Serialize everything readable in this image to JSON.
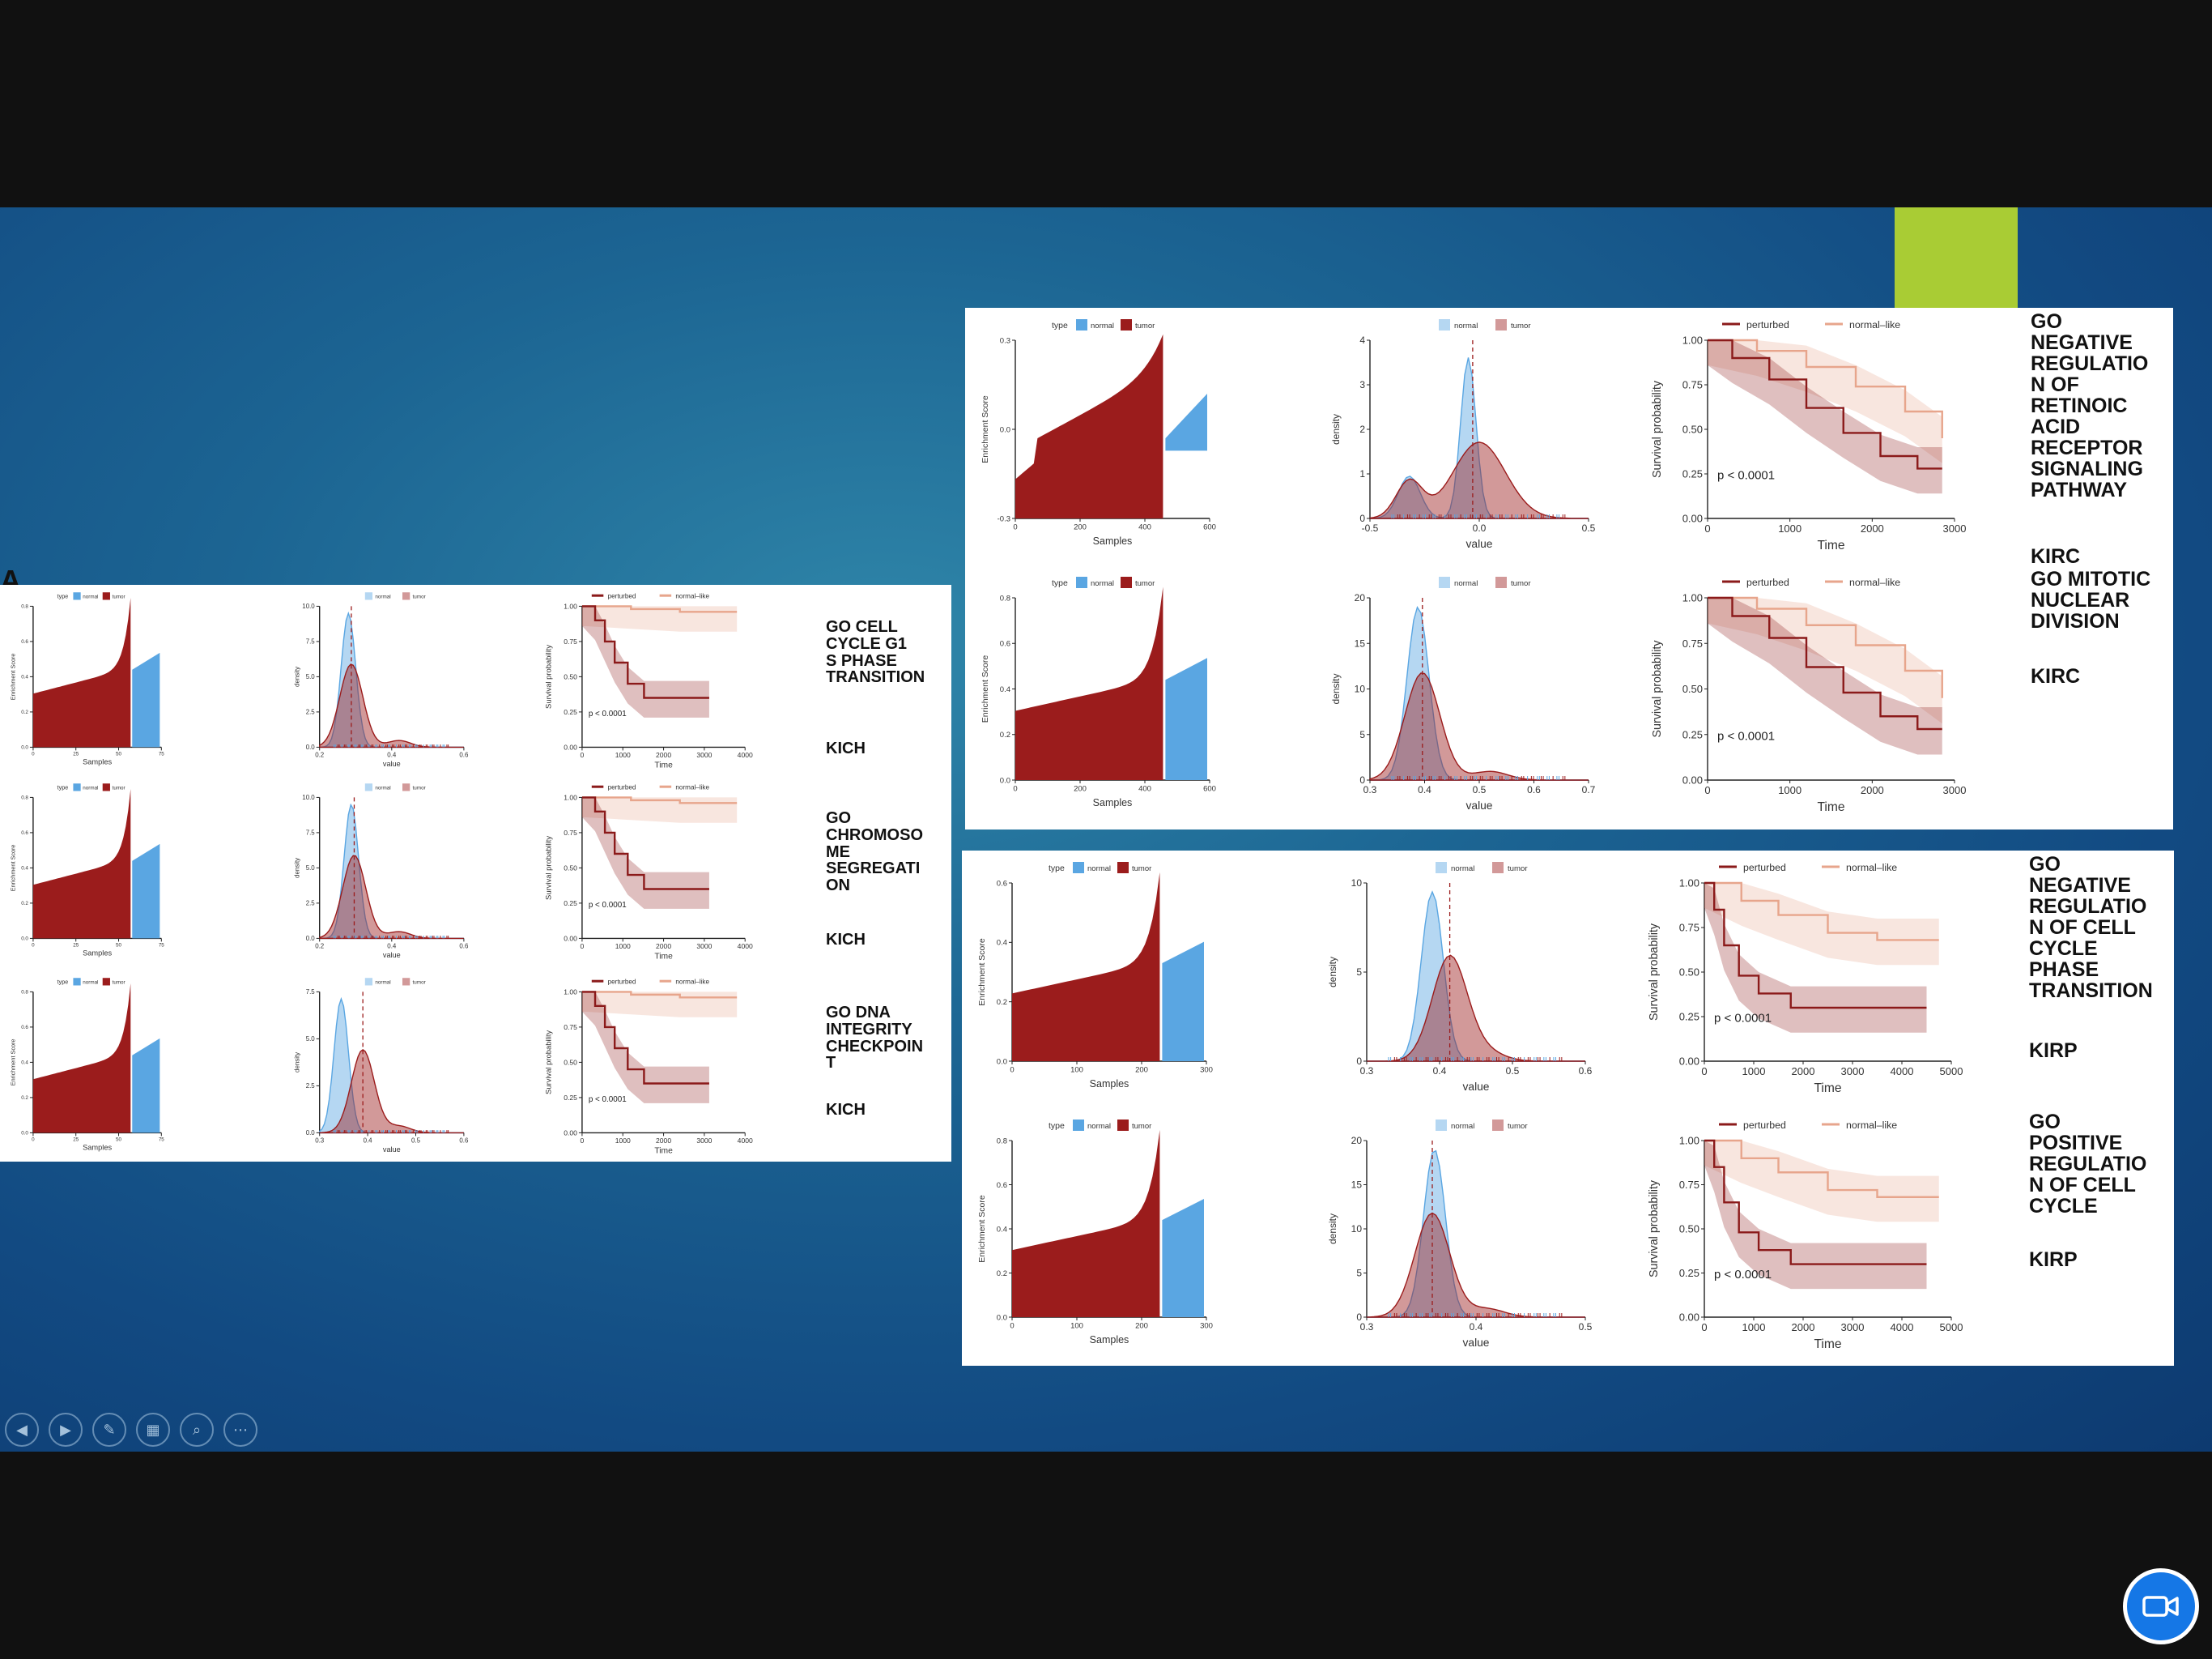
{
  "slide": {
    "title_fragment": "A"
  },
  "colors": {
    "tumor": "#9b1c1c",
    "normal": "#5aa6e2",
    "perturbed": "#8b1a1a",
    "normal_like": "#e7a58c",
    "accent": "#a9cc34",
    "camera": "#1577e6"
  },
  "legend_text": {
    "type": "type",
    "normal": "normal",
    "tumor": "tumor",
    "perturbed": "perturbed",
    "normal_like": "normal–like",
    "normal_like_alt": "normal–like"
  },
  "axis_text": {
    "enrichment": "Enrichment Score",
    "samples": "Samples",
    "density": "density",
    "value": "value",
    "survival": "Survival probability",
    "time": "Time"
  },
  "rows": [
    {
      "pathway": "GO CELL\nCYCLE G1\nS PHASE\nTRANSITION",
      "cohort": "KICH",
      "pvalue": "p < 0.0001",
      "e_xticks": [
        "0",
        "25",
        "50",
        "75"
      ],
      "e_yticks": [
        "0.0",
        "0.2",
        "0.4",
        "0.6",
        "0.8"
      ],
      "d_xticks": [
        "0.2",
        "0.4",
        "0.6"
      ],
      "d_yticks": [
        "0.0",
        "2.5",
        "5.0",
        "7.5",
        "10.0"
      ],
      "s_xticks": [
        "0",
        "1000",
        "2000",
        "3000",
        "4000"
      ],
      "s_yticks": [
        "0.00",
        "0.25",
        "0.50",
        "0.75",
        "1.00"
      ]
    },
    {
      "pathway": "GO\nCHROMOSO\nME\nSEGREGATI\nON",
      "cohort": "KICH",
      "pvalue": "p < 0.0001",
      "e_xticks": [
        "0",
        "25",
        "50",
        "75"
      ],
      "e_yticks": [
        "0.0",
        "0.2",
        "0.4",
        "0.6",
        "0.8"
      ],
      "d_xticks": [
        "0.2",
        "0.4",
        "0.6"
      ],
      "d_yticks": [
        "0.0",
        "2.5",
        "5.0",
        "7.5",
        "10.0"
      ],
      "s_xticks": [
        "0",
        "1000",
        "2000",
        "3000",
        "4000"
      ],
      "s_yticks": [
        "0.00",
        "0.25",
        "0.50",
        "0.75",
        "1.00"
      ]
    },
    {
      "pathway": "GO DNA\nINTEGRITY\nCHECKPOIN\nT",
      "cohort": "KICH",
      "pvalue": "p < 0.0001",
      "e_xticks": [
        "0",
        "25",
        "50",
        "75"
      ],
      "e_yticks": [
        "0.0",
        "0.2",
        "0.4",
        "0.6",
        "0.8"
      ],
      "d_xticks": [
        "0.3",
        "0.4",
        "0.5",
        "0.6"
      ],
      "d_yticks": [
        "0.0",
        "2.5",
        "5.0",
        "7.5"
      ],
      "s_xticks": [
        "0",
        "1000",
        "2000",
        "3000",
        "4000"
      ],
      "s_yticks": [
        "0.00",
        "0.25",
        "0.50",
        "0.75",
        "1.00"
      ]
    },
    {
      "pathway": "GO\nNEGATIVE\nREGULATIO\nN OF\nRETINOIC\nACID\nRECEPTOR\nSIGNALING\nPATHWAY",
      "cohort": "KIRC",
      "pvalue": "p < 0.0001",
      "e_xticks": [
        "0",
        "200",
        "400",
        "600"
      ],
      "e_yticks": [
        "-0.3",
        "0.0",
        "0.3"
      ],
      "d_xticks": [
        "-0.5",
        "0.0",
        "0.5"
      ],
      "d_yticks": [
        "0",
        "1",
        "2",
        "3",
        "4"
      ],
      "s_xticks": [
        "0",
        "1000",
        "2000",
        "3000"
      ],
      "s_yticks": [
        "0.00",
        "0.25",
        "0.50",
        "0.75",
        "1.00"
      ]
    },
    {
      "pathway": "GO MITOTIC\nNUCLEAR\nDIVISION",
      "cohort": "KIRC",
      "pvalue": "p < 0.0001",
      "e_xticks": [
        "0",
        "200",
        "400",
        "600"
      ],
      "e_yticks": [
        "0.0",
        "0.2",
        "0.4",
        "0.6",
        "0.8"
      ],
      "d_xticks": [
        "0.3",
        "0.4",
        "0.5",
        "0.6",
        "0.7"
      ],
      "d_yticks": [
        "0",
        "5",
        "10",
        "15",
        "20"
      ],
      "s_xticks": [
        "0",
        "1000",
        "2000",
        "3000"
      ],
      "s_yticks": [
        "0.00",
        "0.25",
        "0.50",
        "0.75",
        "1.00"
      ]
    },
    {
      "pathway": "GO\nNEGATIVE\nREGULATIO\nN OF CELL\nCYCLE\nPHASE\nTRANSITION",
      "cohort": "KIRP",
      "pvalue": "p < 0.0001",
      "e_xticks": [
        "0",
        "100",
        "200",
        "300"
      ],
      "e_yticks": [
        "0.0",
        "0.2",
        "0.4",
        "0.6"
      ],
      "d_xticks": [
        "0.3",
        "0.4",
        "0.5",
        "0.6"
      ],
      "d_yticks": [
        "0",
        "5",
        "10"
      ],
      "s_xticks": [
        "0",
        "1000",
        "2000",
        "3000",
        "4000",
        "5000"
      ],
      "s_yticks": [
        "0.00",
        "0.25",
        "0.50",
        "0.75",
        "1.00"
      ]
    },
    {
      "pathway": "GO\nPOSITIVE\nREGULATIO\nN OF CELL\nCYCLE",
      "cohort": "KIRP",
      "pvalue": "p < 0.0001",
      "e_xticks": [
        "0",
        "100",
        "200",
        "300"
      ],
      "e_yticks": [
        "0.0",
        "0.2",
        "0.4",
        "0.6",
        "0.8"
      ],
      "d_xticks": [
        "0.3",
        "0.4",
        "0.5"
      ],
      "d_yticks": [
        "0",
        "5",
        "10",
        "15",
        "20"
      ],
      "s_xticks": [
        "0",
        "1000",
        "2000",
        "3000",
        "4000",
        "5000"
      ],
      "s_yticks": [
        "0.00",
        "0.25",
        "0.50",
        "0.75",
        "1.00"
      ]
    }
  ],
  "toolbar": {
    "prev_icon": "◀",
    "next_icon": "▶",
    "pen_icon": "✎",
    "slides_icon": "▦",
    "zoom_icon": "⌕",
    "more_icon": "⋯"
  },
  "camera": {
    "icon": "video-camera-icon"
  }
}
